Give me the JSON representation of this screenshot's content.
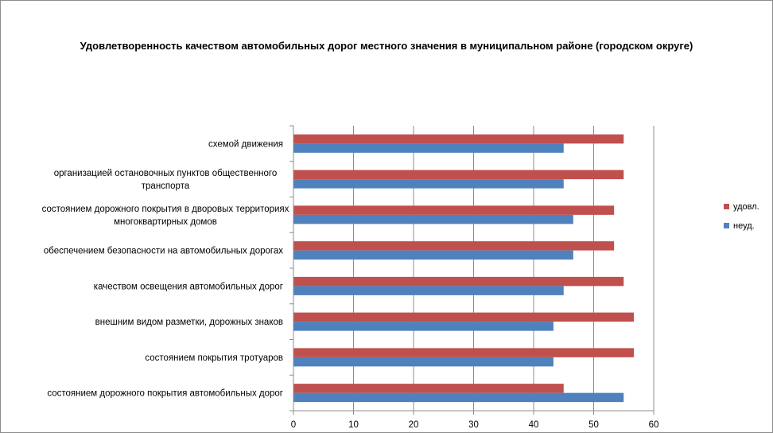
{
  "chart_data": {
    "type": "bar",
    "orientation": "horizontal",
    "title": "Удовлетворенность качеством автомобильных дорог местного значения в муниципальном районе (городском округе)",
    "categories": [
      [
        "схемой движения"
      ],
      [
        "организацией остановочных пунктов общественного",
        "транспорта"
      ],
      [
        "состоянием дорожного покрытия в дворовых территориях",
        "многоквартирных домов"
      ],
      [
        "обеспечением  безопасности на автомобильных дорогах"
      ],
      [
        "качеством освещения  автомобильных дорог"
      ],
      [
        "внешним  видом разметки, дорожных знаков"
      ],
      [
        "состоянием покрытия тротуаров"
      ],
      [
        "состоянием дорожного покрытия автомобильных дорог"
      ]
    ],
    "series": [
      {
        "name": "удовл.",
        "color": "#c0504d",
        "values": [
          55,
          55,
          53.4,
          53.4,
          55,
          56.7,
          56.7,
          45
        ]
      },
      {
        "name": "неуд.",
        "color": "#4f81bd",
        "values": [
          45,
          45,
          46.6,
          46.6,
          45,
          43.3,
          43.3,
          55
        ]
      }
    ],
    "xlim": [
      0,
      60
    ],
    "xticks": [
      "0",
      "10",
      "20",
      "30",
      "40",
      "50",
      "60"
    ],
    "grid": true,
    "legend": "right"
  }
}
